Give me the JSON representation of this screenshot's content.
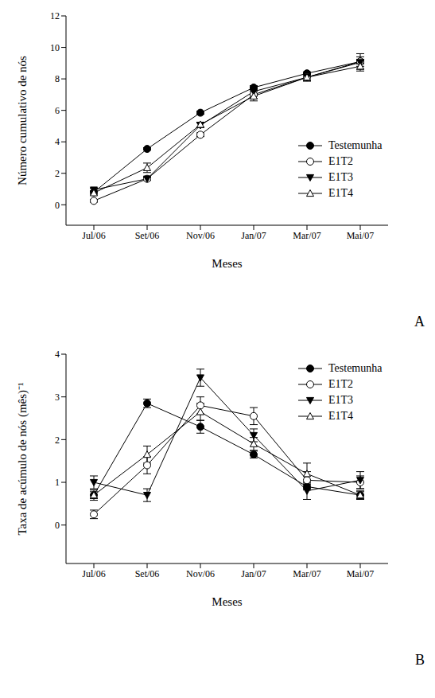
{
  "chart_data": [
    {
      "type": "line",
      "x_label": "Meses",
      "y_label": "Número cumulativo de nós",
      "annotations": [
        "A"
      ],
      "categories": [
        "Jul/06",
        "Set/06",
        "Nov/06",
        "Jan/07",
        "Mar/07",
        "Mai/07"
      ],
      "ylim": [
        -1.3,
        12
      ],
      "yticks": [
        0,
        2,
        4,
        6,
        8,
        10,
        12
      ],
      "grid": false,
      "legend": "right",
      "series": [
        {
          "name": "Testemunha",
          "color": "#000000",
          "marker": "circle",
          "values": [
            0.8,
            3.55,
            5.85,
            7.45,
            8.35,
            9.1
          ],
          "errors": [
            0.08,
            0.08,
            0.1,
            0.12,
            0.1,
            0.15
          ]
        },
        {
          "name": "E1T2",
          "color": "#000000",
          "marker": "circle_open",
          "values": [
            0.25,
            1.65,
            4.45,
            7.0,
            8.1,
            9.1
          ],
          "errors": [
            0.08,
            0.1,
            0.12,
            0.25,
            0.2,
            0.3
          ]
        },
        {
          "name": "E1T3",
          "color": "#000000",
          "marker": "triangle_down",
          "values": [
            0.95,
            1.65,
            5.05,
            7.2,
            8.1,
            9.05
          ],
          "errors": [
            0.1,
            0.1,
            0.15,
            0.3,
            0.25,
            0.55
          ]
        },
        {
          "name": "E1T4",
          "color": "#000000",
          "marker": "triangle_up_open",
          "values": [
            0.75,
            2.35,
            5.1,
            6.9,
            8.1,
            8.8
          ],
          "errors": [
            0.12,
            0.3,
            0.15,
            0.3,
            0.2,
            0.2
          ]
        }
      ]
    },
    {
      "type": "line",
      "x_label": "Meses",
      "y_label": "Taxa de acúmulo de nós (mês)⁻¹",
      "annotations": [
        "B"
      ],
      "categories": [
        "Jul/06",
        "Set/06",
        "Nov/06",
        "Jan/07",
        "Mar/07",
        "Mai/07"
      ],
      "ylim": [
        -0.9,
        4
      ],
      "yticks": [
        0,
        1,
        2,
        3,
        4
      ],
      "grid": false,
      "legend": "upper right",
      "series": [
        {
          "name": "Testemunha",
          "color": "#000000",
          "marker": "circle",
          "values": [
            0.7,
            2.85,
            2.3,
            1.65,
            0.9,
            0.7
          ],
          "errors": [
            0.08,
            0.1,
            0.15,
            0.08,
            0.08,
            0.08
          ]
        },
        {
          "name": "E1T2",
          "color": "#000000",
          "marker": "circle_open",
          "values": [
            0.25,
            1.4,
            2.8,
            2.55,
            1.05,
            1.0
          ],
          "errors": [
            0.1,
            0.2,
            0.2,
            0.2,
            0.2,
            0.15
          ]
        },
        {
          "name": "E1T3",
          "color": "#000000",
          "marker": "triangle_down",
          "values": [
            1.0,
            0.7,
            3.45,
            2.1,
            0.8,
            1.05
          ],
          "errors": [
            0.15,
            0.15,
            0.2,
            0.15,
            0.2,
            0.2
          ]
        },
        {
          "name": "E1T4",
          "color": "#000000",
          "marker": "triangle_up_open",
          "values": [
            0.7,
            1.65,
            2.65,
            1.9,
            1.2,
            0.7
          ],
          "errors": [
            0.12,
            0.2,
            0.2,
            0.15,
            0.25,
            0.1
          ]
        }
      ]
    }
  ]
}
